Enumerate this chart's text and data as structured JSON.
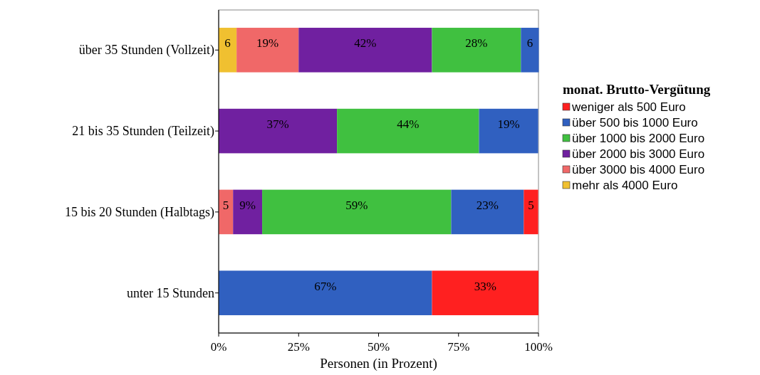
{
  "chart_data": {
    "type": "bar",
    "orientation": "horizontal",
    "stacked": true,
    "categories": [
      "über 35 Stunden (Vollzeit)",
      "21 bis 35 Stunden (Teilzeit)",
      "15 bis 20 Stunden (Halbtags)",
      "unter 15 Stunden"
    ],
    "xlabel": "Personen (in Prozent)",
    "legend_title": "monat. Brutto-Vergütung",
    "legend": "right",
    "grid": false,
    "xlim": [
      0,
      100
    ],
    "xticks": [
      {
        "value": 0,
        "label": "0%"
      },
      {
        "value": 25,
        "label": "25%"
      },
      {
        "value": 50,
        "label": "50%"
      },
      {
        "value": 75,
        "label": "75%"
      },
      {
        "value": 100,
        "label": "100%"
      }
    ],
    "series": [
      {
        "name": "mehr als 4000 Euro",
        "color": "#f0c030",
        "values": [
          5.6,
          0,
          0,
          0
        ],
        "value_labels": [
          "6",
          null,
          null,
          null
        ]
      },
      {
        "name": "über 3000 bis 4000 Euro",
        "color": "#f06868",
        "values": [
          19.4,
          0,
          4.5,
          0
        ],
        "value_labels": [
          "19%",
          null,
          "5",
          null
        ]
      },
      {
        "name": "über 2000 bis 3000 Euro",
        "color": "#7020a0",
        "values": [
          41.7,
          37.0,
          9.1,
          0
        ],
        "value_labels": [
          "42%",
          "37%",
          "9%",
          null
        ]
      },
      {
        "name": "über 1000 bis 2000 Euro",
        "color": "#40c040",
        "values": [
          27.8,
          44.4,
          59.1,
          0
        ],
        "value_labels": [
          "28%",
          "44%",
          "59%",
          null
        ]
      },
      {
        "name": "über 500 bis 1000 Euro",
        "color": "#3060c0",
        "values": [
          5.6,
          18.5,
          22.7,
          66.7
        ],
        "value_labels": [
          "6",
          "19%",
          "23%",
          "67%"
        ]
      },
      {
        "name": "weniger als 500 Euro",
        "color": "#ff2020",
        "values": [
          0,
          0,
          4.5,
          33.3
        ],
        "value_labels": [
          null,
          null,
          "5",
          "33%"
        ]
      }
    ]
  }
}
